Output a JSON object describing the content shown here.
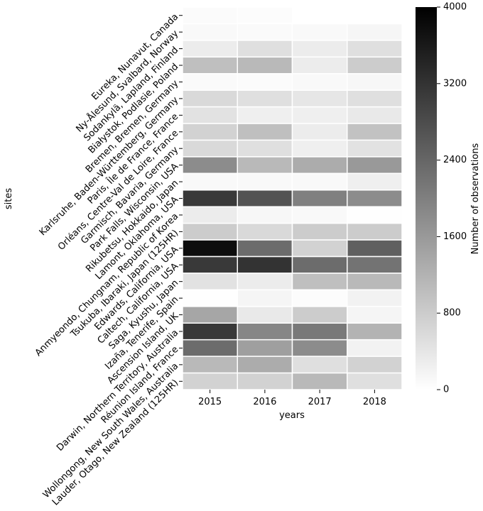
{
  "chart_data": {
    "type": "heatmap",
    "xlabel": "years",
    "ylabel": "sites",
    "colorbar_label": "Number of observations",
    "colormap": "Greys",
    "vmin": 0,
    "vmax": 4000,
    "colorbar_ticks": [
      "0",
      "800",
      "1600",
      "2400",
      "3200",
      "4000"
    ],
    "x": [
      "2015",
      "2016",
      "2017",
      "2018"
    ],
    "y": [
      "Eureka, Nunavut, Canada",
      "Ny-Ålesund, Svalbard, Norway",
      "Sodankylä, Lapland, Finland",
      "Białystok, Podlasie, Poland",
      "Bremen, Bremen, Germany",
      "Karlsruhe, Baden-Württemberg, Germany",
      "Paris, Île de France, France",
      "Orléans, Centre-Val de Loire, France",
      "Garmisch, Bavaria, Germany",
      "Park Falls, Wisconsin, USA",
      "Rikubetsu, Hokkaido, Japan",
      "Lamont, Oklahoma, USA",
      "Anmyeondo, Chungnam, Republic of Korea",
      "Tsukuba, Ibaraki, Japan (125HR)",
      "Edwards, California, USA",
      "Caltech, California, USA",
      "Saga, Kyushu, Japan",
      "Izaña, Tenerife, Spain",
      "Ascension Island, UK",
      "Darwin, Northern Territory, Australia",
      "Réunion Island, France",
      "Wollongong, New South Wales, Australia",
      "Lauder, Otago, New Zealand (125HR)"
    ],
    "values": [
      [
        60,
        40,
        null,
        null
      ],
      [
        100,
        80,
        100,
        140
      ],
      [
        300,
        500,
        300,
        500
      ],
      [
        1000,
        1100,
        300,
        800
      ],
      [
        80,
        60,
        100,
        120
      ],
      [
        600,
        500,
        400,
        500
      ],
      [
        450,
        250,
        250,
        350
      ],
      [
        700,
        1000,
        300,
        950
      ],
      [
        600,
        500,
        250,
        450
      ],
      [
        1800,
        1100,
        1300,
        1600
      ],
      [
        100,
        100,
        100,
        250
      ],
      [
        3100,
        2700,
        2000,
        1800
      ],
      [
        300,
        120,
        100,
        20
      ],
      [
        800,
        600,
        800,
        800
      ],
      [
        3800,
        2300,
        700,
        2500
      ],
      [
        3100,
        3200,
        2300,
        2200
      ],
      [
        450,
        300,
        1000,
        1100
      ],
      [
        10,
        150,
        50,
        200
      ],
      [
        1400,
        350,
        800,
        150
      ],
      [
        3100,
        1900,
        2100,
        1200
      ],
      [
        2300,
        1500,
        1800,
        200
      ],
      [
        1100,
        1300,
        500,
        700
      ],
      [
        700,
        700,
        1100,
        500
      ]
    ]
  }
}
